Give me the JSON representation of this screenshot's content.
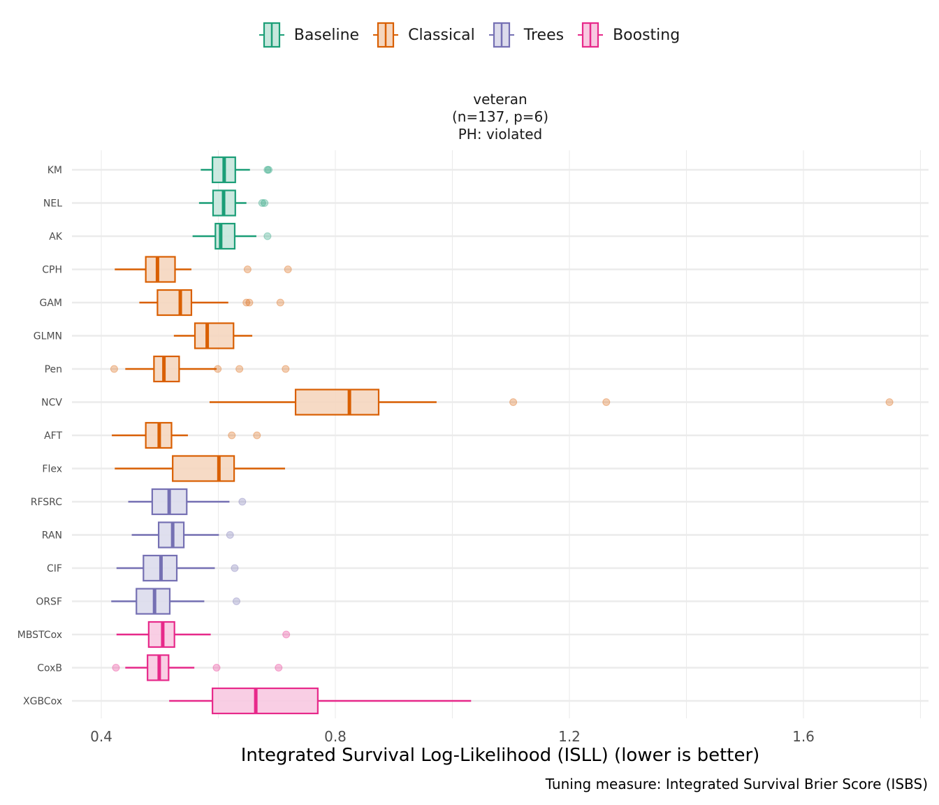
{
  "chart_data": {
    "type": "boxplot",
    "orientation": "horizontal",
    "panel_title": [
      "veteran",
      "(n=137, p=6)",
      "PH: violated"
    ],
    "xlabel": "Integrated Survival Log-Likelihood (ISLL) (lower is better)",
    "caption": "Tuning measure: Integrated Survival Brier Score (ISBS)",
    "ylabel": "",
    "xlim": [
      0.35,
      1.82
    ],
    "xticks": [
      0.4,
      0.8,
      1.2,
      1.6
    ],
    "xtick_labels": [
      "0.4",
      "0.8",
      "1.2",
      "1.6"
    ],
    "grid": true,
    "legend_position": "top",
    "groups": [
      {
        "name": "Baseline",
        "color": "#1B9E77",
        "fill": "#C6E7DD"
      },
      {
        "name": "Classical",
        "color": "#D95F02",
        "fill": "#F5D6BF"
      },
      {
        "name": "Trees",
        "color": "#7570B3",
        "fill": "#DCDBEC"
      },
      {
        "name": "Boosting",
        "color": "#E7298A",
        "fill": "#F8C9E1"
      }
    ],
    "series": [
      {
        "name": "KM",
        "group": "Baseline",
        "whisker_low": 0.57,
        "q1": 0.59,
        "median": 0.61,
        "q3": 0.629,
        "whisker_high": 0.654,
        "outliers": [
          0.684,
          0.686
        ]
      },
      {
        "name": "NEL",
        "group": "Baseline",
        "whisker_low": 0.567,
        "q1": 0.591,
        "median": 0.609,
        "q3": 0.629,
        "whisker_high": 0.648,
        "outliers": [
          0.675,
          0.679
        ]
      },
      {
        "name": "AK",
        "group": "Baseline",
        "whisker_low": 0.556,
        "q1": 0.595,
        "median": 0.604,
        "q3": 0.628,
        "whisker_high": 0.665,
        "outliers": [
          0.684
        ]
      },
      {
        "name": "CPH",
        "group": "Classical",
        "whisker_low": 0.423,
        "q1": 0.476,
        "median": 0.496,
        "q3": 0.526,
        "whisker_high": 0.554,
        "outliers": [
          0.65,
          0.719
        ]
      },
      {
        "name": "GAM",
        "group": "Classical",
        "whisker_low": 0.465,
        "q1": 0.496,
        "median": 0.535,
        "q3": 0.554,
        "whisker_high": 0.617,
        "outliers": [
          0.648,
          0.653,
          0.706
        ]
      },
      {
        "name": "GLMN",
        "group": "Classical",
        "whisker_low": 0.524,
        "q1": 0.56,
        "median": 0.581,
        "q3": 0.626,
        "whisker_high": 0.658
      },
      {
        "name": "Pen",
        "group": "Classical",
        "whisker_low": 0.441,
        "q1": 0.49,
        "median": 0.507,
        "q3": 0.533,
        "whisker_high": 0.597,
        "outliers": [
          0.422,
          0.599,
          0.636,
          0.715
        ]
      },
      {
        "name": "NCV",
        "group": "Classical",
        "whisker_low": 0.585,
        "q1": 0.732,
        "median": 0.824,
        "q3": 0.874,
        "whisker_high": 0.973,
        "outliers": [
          1.104,
          1.263,
          1.747
        ]
      },
      {
        "name": "AFT",
        "group": "Classical",
        "whisker_low": 0.418,
        "q1": 0.476,
        "median": 0.499,
        "q3": 0.52,
        "whisker_high": 0.548,
        "outliers": [
          0.623,
          0.666
        ]
      },
      {
        "name": "Flex",
        "group": "Classical",
        "whisker_low": 0.423,
        "q1": 0.522,
        "median": 0.601,
        "q3": 0.627,
        "whisker_high": 0.714
      },
      {
        "name": "RFSRC",
        "group": "Trees",
        "whisker_low": 0.446,
        "q1": 0.487,
        "median": 0.516,
        "q3": 0.546,
        "whisker_high": 0.619,
        "outliers": [
          0.641
        ]
      },
      {
        "name": "RAN",
        "group": "Trees",
        "whisker_low": 0.452,
        "q1": 0.498,
        "median": 0.522,
        "q3": 0.541,
        "whisker_high": 0.601,
        "outliers": [
          0.62
        ]
      },
      {
        "name": "CIF",
        "group": "Trees",
        "whisker_low": 0.426,
        "q1": 0.472,
        "median": 0.502,
        "q3": 0.529,
        "whisker_high": 0.594,
        "outliers": [
          0.628
        ]
      },
      {
        "name": "ORSF",
        "group": "Trees",
        "whisker_low": 0.417,
        "q1": 0.46,
        "median": 0.491,
        "q3": 0.517,
        "whisker_high": 0.576,
        "outliers": [
          0.631
        ]
      },
      {
        "name": "MBSTCox",
        "group": "Boosting",
        "whisker_low": 0.426,
        "q1": 0.481,
        "median": 0.505,
        "q3": 0.525,
        "whisker_high": 0.587,
        "outliers": [
          0.716
        ]
      },
      {
        "name": "CoxB",
        "group": "Boosting",
        "whisker_low": 0.441,
        "q1": 0.479,
        "median": 0.499,
        "q3": 0.515,
        "whisker_high": 0.559,
        "outliers": [
          0.425,
          0.597,
          0.703
        ]
      },
      {
        "name": "XGBCox",
        "group": "Boosting",
        "whisker_low": 0.516,
        "q1": 0.59,
        "median": 0.664,
        "q3": 0.77,
        "whisker_high": 1.032
      }
    ]
  }
}
